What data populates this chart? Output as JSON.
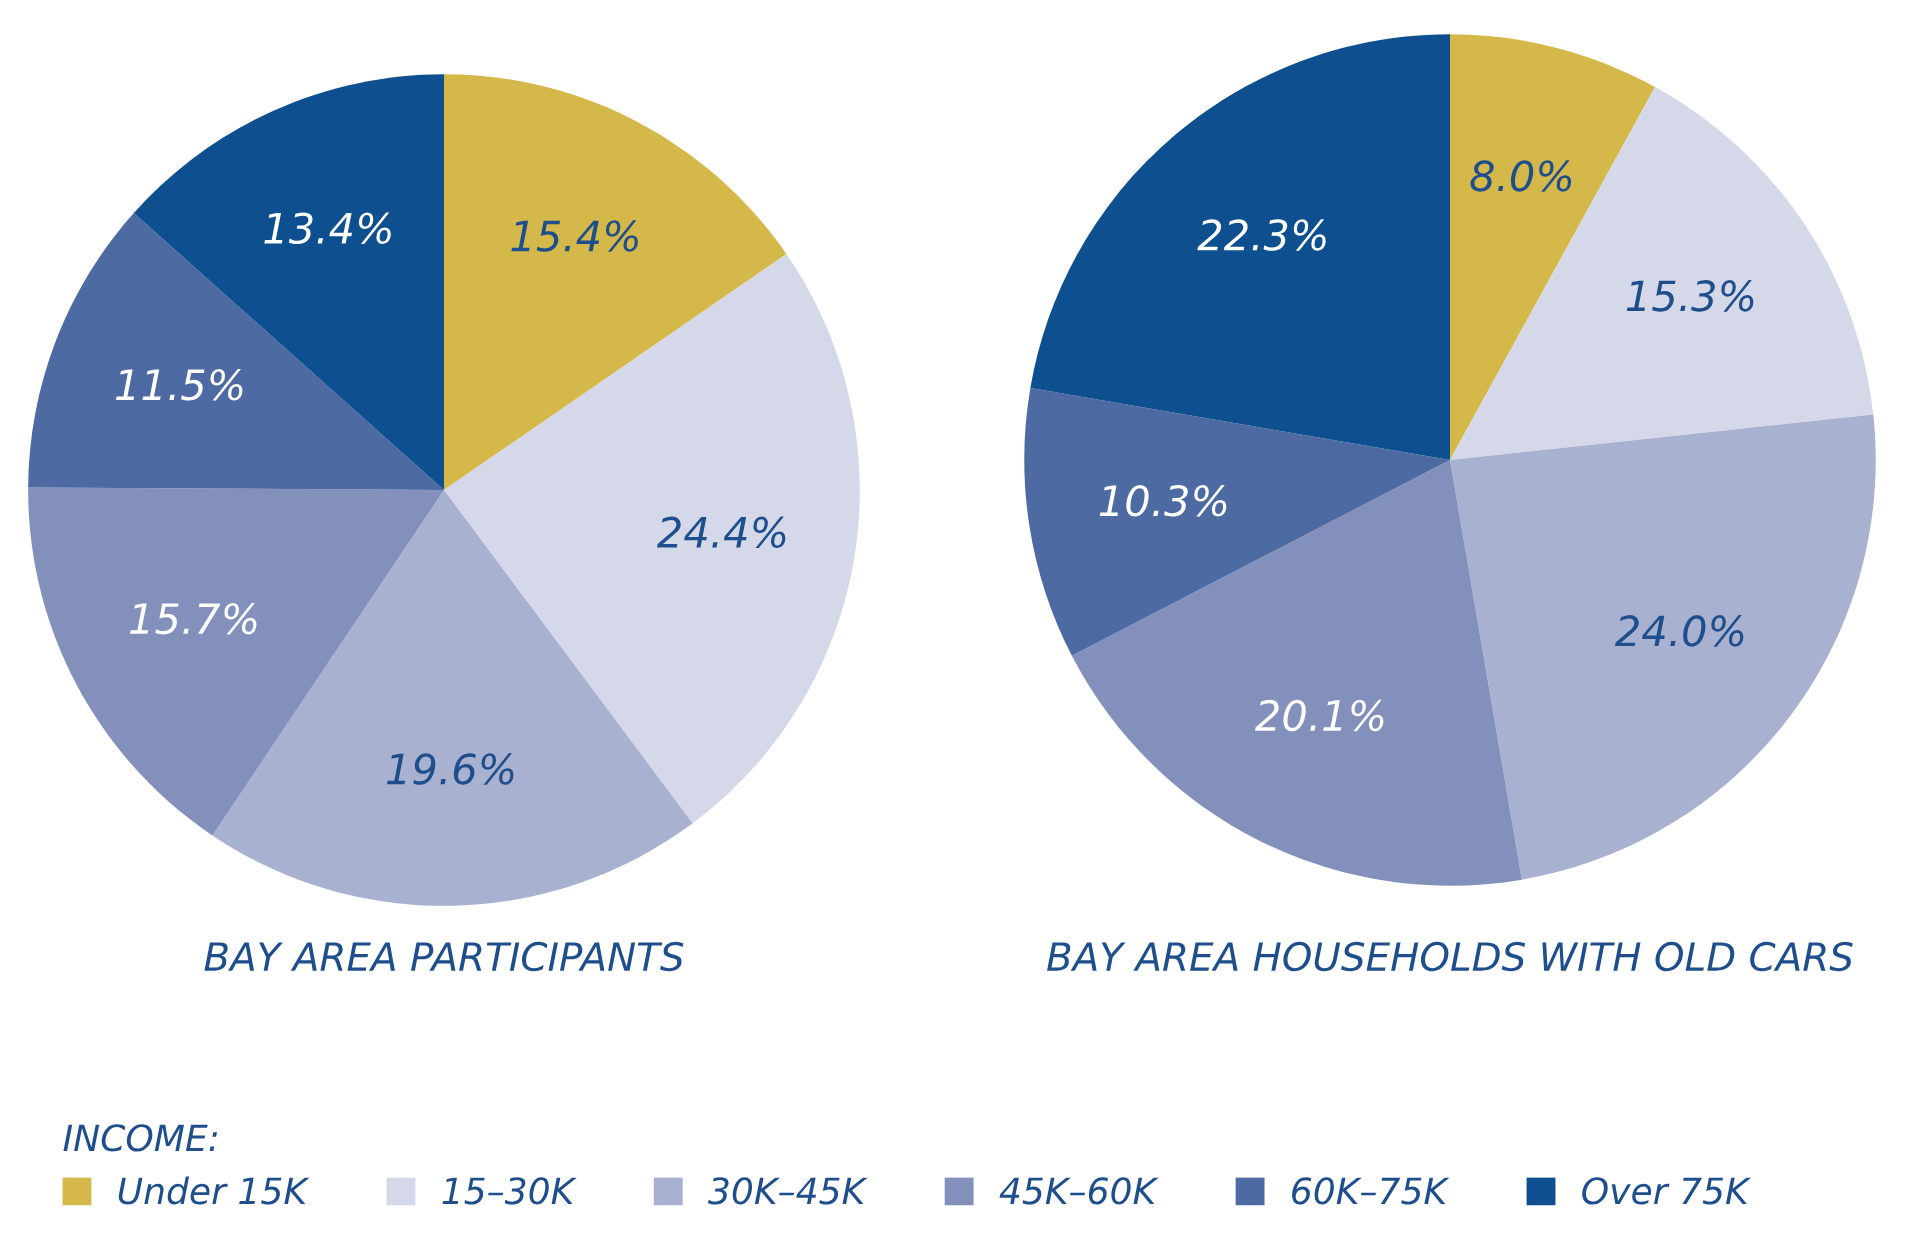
{
  "chart_data": [
    {
      "type": "pie",
      "title": "BAY AREA PARTICIPANTS",
      "legend": "bottom",
      "legend_title": "INCOME:",
      "categories": [
        "Under 15K",
        "15–30K",
        "30K–45K",
        "45K–60K",
        "60K–75K",
        "Over 75K"
      ],
      "values": [
        15.4,
        24.4,
        19.6,
        15.7,
        11.5,
        13.4
      ],
      "value_labels": [
        "15.4%",
        "24.4%",
        "19.6%",
        "15.7%",
        "11.5%",
        "13.4%"
      ],
      "colors": [
        "#d4b84a",
        "#d5d8e8",
        "#a9b1d1",
        "#8290bb",
        "#4d6aa3",
        "#0d4f8f"
      ]
    },
    {
      "type": "pie",
      "title": "BAY AREA HOUSEHOLDS WITH OLD CARS",
      "categories": [
        null,
        null,
        null,
        null,
        null,
        null
      ],
      "values": [
        8.0,
        15.3,
        24.0,
        20.1,
        10.3,
        22.3
      ],
      "value_labels": [
        "8.0%",
        "15.3%",
        "24.0%",
        "20.1%",
        "10.3%",
        "22.3%"
      ],
      "colors": [
        "#d4b84a",
        "#d5d8e8",
        "#a9b1d1",
        "#8290bb",
        "#4d6aa3",
        "#0d4f8f"
      ]
    }
  ]
}
